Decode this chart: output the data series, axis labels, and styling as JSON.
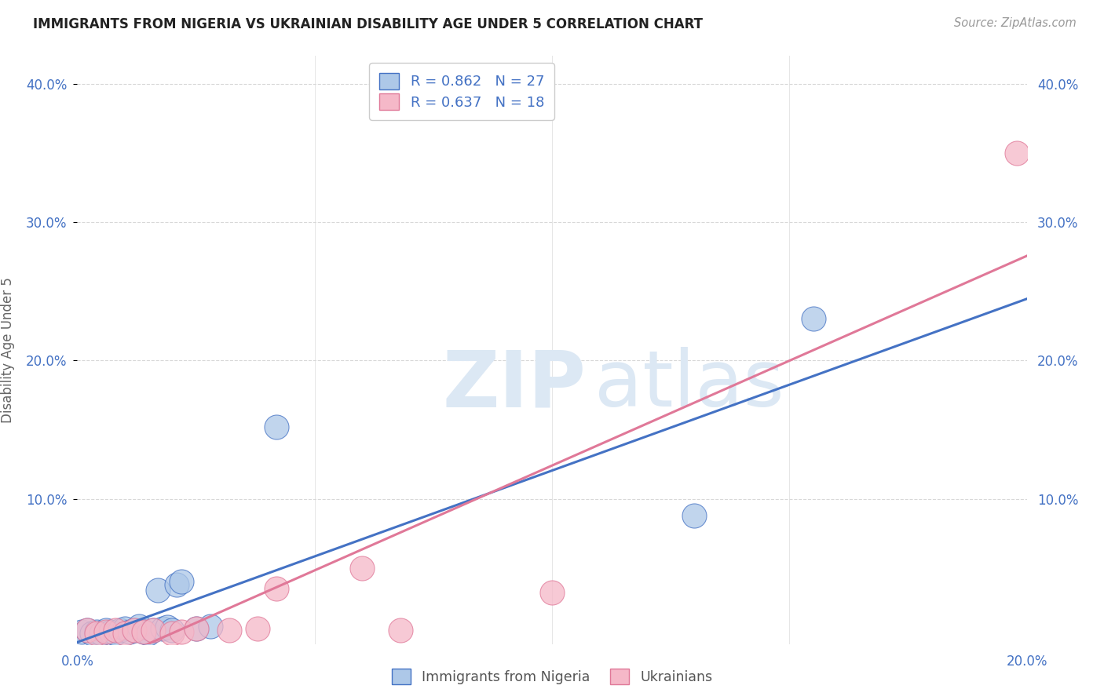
{
  "title": "IMMIGRANTS FROM NIGERIA VS UKRAINIAN DISABILITY AGE UNDER 5 CORRELATION CHART",
  "source": "Source: ZipAtlas.com",
  "ylabel": "Disability Age Under 5",
  "xlim": [
    0.0,
    0.2
  ],
  "ylim": [
    -0.005,
    0.42
  ],
  "nigeria_R": 0.862,
  "nigeria_N": 27,
  "ukraine_R": 0.637,
  "ukraine_N": 18,
  "nigeria_color": "#adc8e8",
  "ukraine_color": "#f5b8c8",
  "nigeria_line_color": "#4472c4",
  "ukraine_line_color": "#e07898",
  "nigeria_scatter_x": [
    0.001,
    0.002,
    0.003,
    0.004,
    0.005,
    0.006,
    0.007,
    0.008,
    0.009,
    0.01,
    0.011,
    0.012,
    0.013,
    0.014,
    0.015,
    0.016,
    0.017,
    0.018,
    0.019,
    0.02,
    0.021,
    0.022,
    0.025,
    0.028,
    0.042,
    0.13,
    0.155
  ],
  "nigeria_scatter_y": [
    0.004,
    0.005,
    0.003,
    0.004,
    0.003,
    0.005,
    0.004,
    0.003,
    0.005,
    0.006,
    0.004,
    0.005,
    0.008,
    0.004,
    0.003,
    0.005,
    0.034,
    0.006,
    0.007,
    0.005,
    0.038,
    0.04,
    0.006,
    0.008,
    0.152,
    0.088,
    0.23
  ],
  "ukraine_scatter_x": [
    0.002,
    0.004,
    0.006,
    0.008,
    0.01,
    0.012,
    0.014,
    0.016,
    0.02,
    0.022,
    0.025,
    0.032,
    0.038,
    0.042,
    0.06,
    0.068,
    0.1,
    0.198
  ],
  "ukraine_scatter_y": [
    0.005,
    0.003,
    0.004,
    0.005,
    0.003,
    0.005,
    0.004,
    0.005,
    0.003,
    0.004,
    0.006,
    0.005,
    0.006,
    0.035,
    0.05,
    0.005,
    0.032,
    0.35
  ],
  "watermark_zip": "ZIP",
  "watermark_atlas": "atlas",
  "background_color": "#ffffff",
  "grid_color": "#d8d8d8",
  "axis_color": "#4472c4",
  "tick_color": "#888888",
  "title_color": "#222222",
  "source_color": "#999999",
  "ylabel_color": "#666666"
}
